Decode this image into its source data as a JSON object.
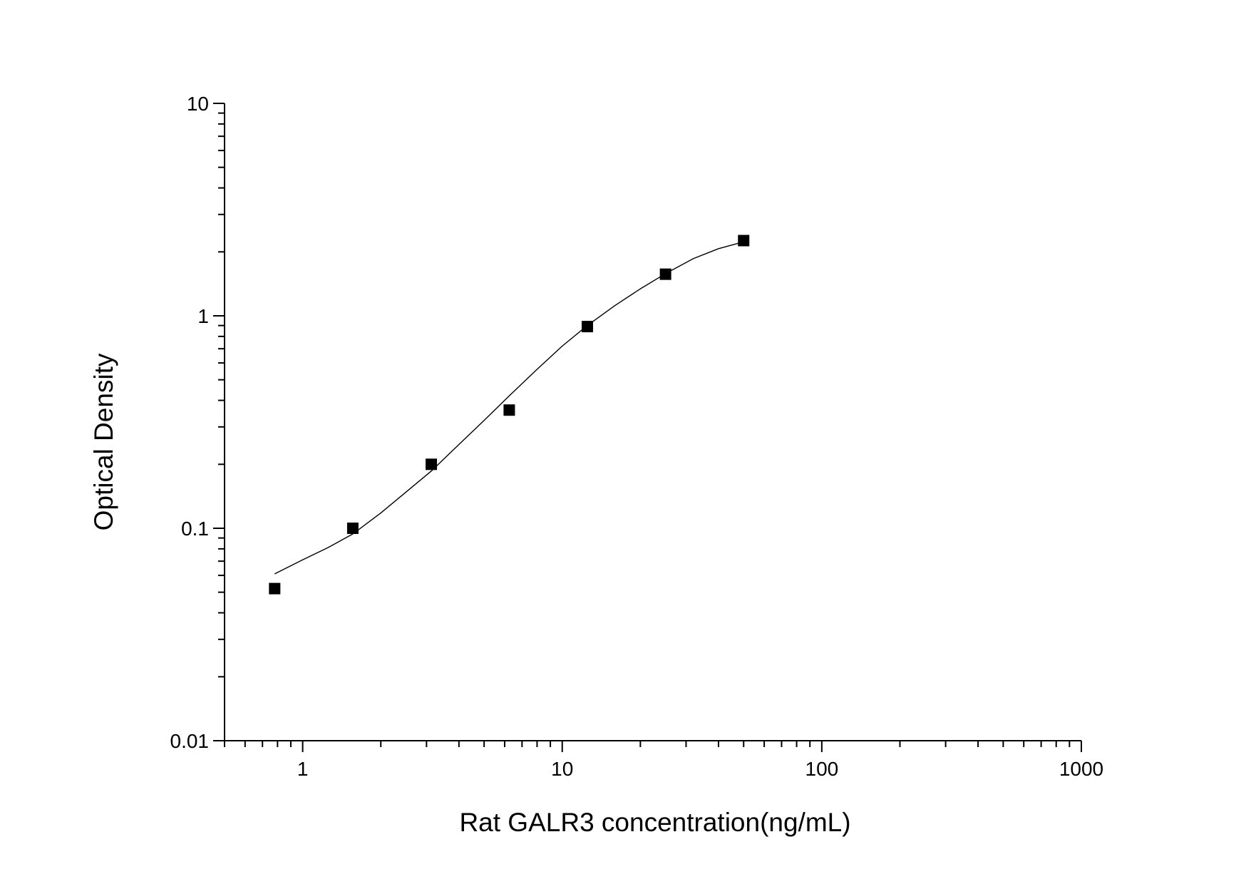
{
  "chart_data": {
    "type": "scatter",
    "xlabel": "Rat GALR3 concentration(ng/mL)",
    "ylabel": "Optical Density",
    "xscale": "log",
    "yscale": "log",
    "xlim": [
      0.5,
      1000
    ],
    "ylim": [
      0.01,
      10
    ],
    "x_tick_labels": [
      "1",
      "10",
      "100",
      "1000"
    ],
    "y_tick_labels": [
      "0.01",
      "0.1",
      "1",
      "10"
    ],
    "grid": false,
    "legend": "none",
    "series": [
      {
        "marker": "square",
        "color": "#000000",
        "x": [
          0.78,
          1.56,
          3.13,
          6.25,
          12.5,
          25,
          50
        ],
        "y": [
          0.052,
          0.1,
          0.2,
          0.36,
          0.89,
          1.57,
          2.26
        ]
      }
    ],
    "fit_curve": {
      "color": "#000000",
      "x": [
        0.78,
        1.0,
        1.25,
        1.56,
        2.0,
        2.5,
        3.13,
        4.0,
        5.0,
        6.25,
        8.0,
        10.0,
        12.5,
        16.0,
        20.0,
        25.0,
        32.0,
        40.0,
        50.0
      ],
      "y": [
        0.061,
        0.071,
        0.081,
        0.094,
        0.118,
        0.148,
        0.186,
        0.248,
        0.322,
        0.42,
        0.56,
        0.72,
        0.9,
        1.12,
        1.34,
        1.58,
        1.86,
        2.07,
        2.23
      ]
    }
  }
}
